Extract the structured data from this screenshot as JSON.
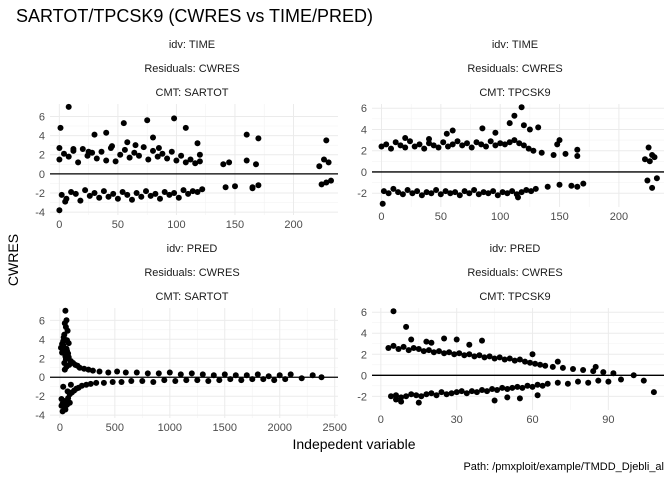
{
  "title": "SARTOT/TPCSK9 (CWRES vs TIME/PRED)",
  "xlabel": "Indepedent variable",
  "ylabel": "CWRES",
  "caption": "Path: /pmxploit/example/TMDD_Djebli_al",
  "chart_data": [
    {
      "type": "scatter",
      "strip": [
        "idv: TIME",
        "Residuals: CWRES",
        "CMT: SARTOT"
      ],
      "xticks": [
        0,
        50,
        100,
        150,
        200
      ],
      "yticks": [
        -4,
        -2,
        0,
        2,
        4,
        6
      ],
      "xlim": [
        -8,
        238
      ],
      "ylim": [
        -4.3,
        7.3
      ],
      "reference_line_y": 0,
      "grid": true,
      "x": [
        0,
        2,
        4,
        6,
        8,
        10,
        12,
        14,
        16,
        18,
        20,
        22,
        24,
        26,
        28,
        30,
        32,
        34,
        36,
        38,
        40,
        42,
        44,
        46,
        48,
        50,
        52,
        54,
        56,
        58,
        60,
        62,
        64,
        66,
        68,
        70,
        72,
        74,
        76,
        78,
        80,
        82,
        84,
        86,
        88,
        90,
        92,
        94,
        96,
        98,
        100,
        102,
        104,
        106,
        108,
        110,
        112,
        114,
        116,
        118,
        120,
        122,
        140,
        142,
        145,
        150,
        160,
        165,
        168,
        170,
        222,
        224,
        226,
        228,
        230,
        232,
        8,
        1,
        0,
        30,
        40,
        55,
        58,
        75,
        80,
        98,
        108,
        118,
        160,
        12,
        25,
        45,
        85,
        120,
        5,
        0,
        65,
        170,
        165,
        228
      ],
      "y": [
        1.5,
        -2.2,
        2.1,
        -2.6,
        1.8,
        -1.9,
        2.4,
        -2.1,
        1.2,
        -2.8,
        2.6,
        -1.7,
        1.9,
        -2.3,
        2.2,
        -2.0,
        1.6,
        -2.5,
        2.3,
        -1.8,
        1.4,
        -2.4,
        2.7,
        -2.1,
        1.3,
        -2.6,
        2.0,
        -1.9,
        2.5,
        -2.2,
        1.7,
        -2.7,
        2.2,
        -2.0,
        1.9,
        -2.4,
        2.8,
        -1.8,
        1.5,
        -2.3,
        2.4,
        -2.1,
        1.8,
        -2.6,
        2.1,
        -1.9,
        1.6,
        -2.2,
        2.3,
        -2.0,
        1.4,
        -2.5,
        1.9,
        -1.7,
        1.2,
        -2.1,
        1.5,
        -1.8,
        1.1,
        -1.9,
        1.3,
        -1.6,
        1.0,
        -1.4,
        1.2,
        -1.3,
        1.4,
        -1.5,
        1.0,
        -1.2,
        0.8,
        -1.1,
        1.5,
        -0.9,
        1.2,
        -0.7,
        7.0,
        4.8,
        -3.8,
        4.1,
        4.3,
        5.3,
        3.3,
        5.6,
        3.8,
        5.8,
        4.8,
        3.2,
        4.1,
        2.6,
        2.3,
        2.9,
        2.7,
        2.0,
        -2.9,
        2.7,
        3.0,
        3.7,
        -1.4,
        3.5
      ]
    },
    {
      "type": "scatter",
      "strip": [
        "idv: TIME",
        "Residuals: CWRES",
        "CMT: TPCSK9"
      ],
      "xticks": [
        0,
        50,
        100,
        150,
        200
      ],
      "yticks": [
        -2,
        0,
        2,
        4,
        6
      ],
      "xlim": [
        -8,
        238
      ],
      "ylim": [
        -3.3,
        6.4
      ],
      "reference_line_y": 0,
      "grid": true,
      "x": [
        0,
        2,
        4,
        6,
        8,
        10,
        12,
        14,
        16,
        18,
        20,
        22,
        24,
        26,
        28,
        30,
        32,
        34,
        36,
        38,
        40,
        42,
        44,
        46,
        48,
        50,
        52,
        54,
        56,
        58,
        60,
        62,
        64,
        66,
        68,
        70,
        72,
        74,
        76,
        78,
        80,
        82,
        84,
        86,
        88,
        90,
        92,
        94,
        96,
        98,
        100,
        102,
        104,
        106,
        108,
        110,
        112,
        114,
        116,
        118,
        120,
        122,
        124,
        126,
        128,
        130,
        135,
        140,
        145,
        150,
        155,
        160,
        165,
        170,
        222,
        224,
        226,
        228,
        230,
        232,
        118,
        112,
        108,
        120,
        85,
        55,
        20,
        60,
        125,
        132,
        1,
        165,
        148,
        96,
        40,
        150,
        115,
        225,
        228,
        165
      ],
      "y": [
        2.4,
        -1.8,
        2.6,
        -2.0,
        2.2,
        -1.6,
        2.8,
        -1.9,
        2.5,
        -2.1,
        2.3,
        -1.7,
        2.9,
        -2.0,
        2.4,
        -1.8,
        2.6,
        -2.2,
        2.2,
        -1.9,
        2.7,
        -2.0,
        2.5,
        -1.7,
        2.3,
        -2.1,
        2.8,
        -1.8,
        2.4,
        -2.0,
        2.6,
        -1.9,
        2.9,
        -2.2,
        2.5,
        -1.8,
        2.7,
        -2.0,
        2.3,
        -1.7,
        2.8,
        -2.1,
        2.6,
        -1.9,
        2.4,
        -2.0,
        2.9,
        -1.8,
        2.5,
        -2.2,
        2.7,
        -1.9,
        2.6,
        -2.0,
        2.8,
        -1.8,
        3.0,
        -2.1,
        2.7,
        -1.9,
        2.5,
        -1.7,
        2.2,
        -1.8,
        2.0,
        -1.6,
        1.8,
        -1.4,
        1.6,
        -1.2,
        1.7,
        -1.3,
        1.5,
        -1.1,
        1.2,
        -0.8,
        1.0,
        -1.5,
        1.4,
        -0.6,
        6.1,
        5.3,
        4.6,
        4.4,
        4.1,
        3.6,
        3.2,
        3.9,
        4.0,
        4.2,
        -3.0,
        2.1,
        2.6,
        3.7,
        3.1,
        3.0,
        -2.4,
        2.3,
        1.6,
        -1.4
      ]
    },
    {
      "type": "scatter",
      "strip": [
        "idv: PRED",
        "Residuals: CWRES",
        "CMT: SARTOT"
      ],
      "xticks": [
        0,
        500,
        1000,
        1500,
        2000,
        2500
      ],
      "yticks": [
        -4,
        -2,
        0,
        2,
        4,
        6
      ],
      "xlim": [
        -90,
        2530
      ],
      "ylim": [
        -4.3,
        7.3
      ],
      "reference_line_y": 0,
      "grid": true,
      "x": [
        10,
        15,
        20,
        25,
        30,
        35,
        40,
        45,
        50,
        55,
        60,
        65,
        70,
        75,
        80,
        90,
        100,
        110,
        120,
        130,
        140,
        150,
        160,
        170,
        180,
        200,
        220,
        240,
        260,
        280,
        300,
        330,
        360,
        400,
        440,
        480,
        520,
        560,
        600,
        650,
        700,
        750,
        800,
        850,
        900,
        950,
        1000,
        1050,
        1100,
        1150,
        1200,
        1250,
        1300,
        1350,
        1400,
        1450,
        1500,
        1550,
        1600,
        1650,
        1700,
        1750,
        1800,
        1850,
        1900,
        1950,
        2000,
        2050,
        2100,
        2200,
        2300,
        2380,
        50,
        60,
        45,
        55,
        70,
        40,
        35,
        65,
        80,
        30,
        50,
        25,
        20,
        65,
        75,
        90,
        15,
        55,
        40,
        60,
        45,
        30,
        70,
        85,
        100
      ],
      "y": [
        3.1,
        -3.0,
        2.6,
        -2.8,
        3.4,
        -2.5,
        2.9,
        -3.2,
        2.2,
        -2.6,
        3.0,
        -2.9,
        2.4,
        -2.2,
        2.1,
        -1.8,
        1.7,
        -1.6,
        1.5,
        -1.4,
        1.3,
        -1.2,
        1.2,
        -1.1,
        1.0,
        -0.9,
        0.9,
        -0.8,
        0.8,
        -0.7,
        0.7,
        -0.6,
        0.6,
        -0.6,
        0.5,
        -0.5,
        0.6,
        -0.5,
        0.5,
        -0.4,
        0.5,
        -0.4,
        0.4,
        -0.5,
        0.4,
        -0.3,
        0.5,
        -0.4,
        0.3,
        -0.3,
        0.4,
        -0.3,
        0.3,
        -0.4,
        0.2,
        -0.3,
        0.3,
        -0.2,
        0.2,
        -0.3,
        0.2,
        -0.2,
        0.3,
        -0.2,
        0.1,
        -0.3,
        0.2,
        -0.2,
        0.3,
        -0.1,
        0.2,
        0.0,
        7.0,
        6.0,
        5.7,
        5.3,
        4.9,
        4.5,
        4.2,
        3.9,
        3.6,
        3.8,
        -3.4,
        -3.6,
        3.5,
        2.8,
        2.5,
        -2.7,
        -2.3,
        1.9,
        1.5,
        1.1,
        0.8,
        -1.0,
        -1.5,
        1.3,
        -0.8
      ]
    },
    {
      "type": "scatter",
      "strip": [
        "idv: PRED",
        "Residuals: CWRES",
        "CMT: TPCSK9"
      ],
      "xticks": [
        0,
        30,
        60,
        90
      ],
      "yticks": [
        -2,
        0,
        2,
        4,
        6
      ],
      "xlim": [
        -3.5,
        112
      ],
      "ylim": [
        -3.3,
        6.4
      ],
      "reference_line_y": 0,
      "grid": true,
      "x": [
        3,
        4,
        5,
        6,
        7,
        8,
        9,
        10,
        11,
        12,
        13,
        14,
        15,
        16,
        17,
        18,
        19,
        20,
        21,
        22,
        23,
        24,
        25,
        26,
        27,
        28,
        29,
        30,
        31,
        32,
        33,
        34,
        35,
        36,
        37,
        38,
        39,
        40,
        41,
        42,
        43,
        44,
        45,
        46,
        47,
        48,
        49,
        50,
        51,
        52,
        53,
        54,
        55,
        56,
        57,
        58,
        59,
        60,
        61,
        62,
        63,
        64,
        65,
        66,
        68,
        70,
        72,
        74,
        76,
        78,
        80,
        82,
        84,
        86,
        88,
        90,
        92,
        95,
        100,
        104,
        108,
        5,
        10,
        8,
        12,
        6,
        18,
        25,
        40,
        35,
        15,
        20,
        55,
        45,
        50,
        60,
        30,
        62,
        70,
        85
      ],
      "y": [
        2.6,
        -2.0,
        2.8,
        -1.9,
        2.5,
        -2.1,
        2.7,
        -2.0,
        2.4,
        -1.8,
        2.6,
        -1.9,
        2.5,
        -2.0,
        2.3,
        -1.8,
        2.4,
        -1.7,
        2.2,
        -1.9,
        2.3,
        -1.6,
        2.1,
        -1.8,
        2.2,
        -1.7,
        2.0,
        -1.6,
        2.1,
        -1.5,
        1.9,
        -1.7,
        2.0,
        -1.5,
        1.8,
        -1.6,
        1.9,
        -1.4,
        1.7,
        -1.5,
        1.8,
        -1.3,
        1.6,
        -1.4,
        1.7,
        -1.2,
        1.5,
        -1.3,
        1.6,
        -1.2,
        1.4,
        -1.1,
        1.5,
        -1.2,
        1.3,
        -1.0,
        1.2,
        -1.1,
        1.1,
        -0.9,
        1.0,
        -1.0,
        0.9,
        -0.8,
        0.8,
        -0.7,
        0.7,
        -0.8,
        0.6,
        -0.6,
        0.5,
        -0.7,
        0.4,
        -0.5,
        0.3,
        -0.6,
        0.2,
        -0.4,
        0.0,
        -0.5,
        -1.6,
        6.1,
        4.6,
        -2.5,
        3.4,
        -2.3,
        3.2,
        3.5,
        3.3,
        2.9,
        -2.6,
        3.1,
        -2.2,
        -2.4,
        -2.1,
        2.0,
        3.4,
        -1.9,
        1.3,
        0.8
      ]
    }
  ]
}
